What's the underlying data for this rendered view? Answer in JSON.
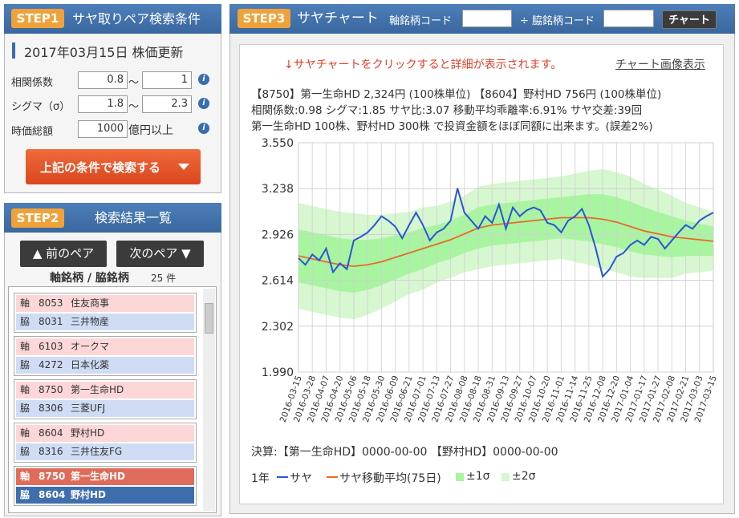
{
  "step1": {
    "badge": "STEP1",
    "title": "サヤ取りペア検索条件",
    "date": "2017年03月15日 株価更新",
    "fields": [
      {
        "label": "相関係数",
        "min": "0.8",
        "sep": "〜",
        "max": "1"
      },
      {
        "label": "シグマ（σ）",
        "min": "1.8",
        "sep": "〜",
        "max": "2.3"
      },
      {
        "label": "時価総額",
        "min": "1000",
        "unit": "億円以上"
      }
    ],
    "button": "上記の条件で検索する"
  },
  "step2": {
    "badge": "STEP2",
    "title": "検索結果一覧",
    "prev": "▲ 前のペア",
    "next": "次のペア ▼",
    "list_header": "軸銘柄 / 脇銘柄",
    "count": "25 件",
    "pairs": [
      {
        "axis_tag": "軸",
        "axis_code": "8053",
        "axis_name": "住友商事",
        "side_tag": "脇",
        "side_code": "8031",
        "side_name": "三井物産"
      },
      {
        "axis_tag": "軸",
        "axis_code": "6103",
        "axis_name": "オークマ",
        "side_tag": "脇",
        "side_code": "4272",
        "side_name": "日本化薬"
      },
      {
        "axis_tag": "軸",
        "axis_code": "8750",
        "axis_name": "第一生命HD",
        "side_tag": "脇",
        "side_code": "8306",
        "side_name": "三菱UFJ"
      },
      {
        "axis_tag": "軸",
        "axis_code": "8604",
        "axis_name": "野村HD",
        "side_tag": "脇",
        "side_code": "8316",
        "side_name": "三井住友FG"
      },
      {
        "axis_tag": "軸",
        "axis_code": "8750",
        "axis_name": "第一生命HD",
        "side_tag": "脇",
        "side_code": "8604",
        "side_name": "野村HD"
      }
    ]
  },
  "step3": {
    "badge": "STEP3",
    "title": "サヤチャート",
    "axis_code_label": "軸銘柄コード",
    "side_code_label": "÷ 脇銘柄コード",
    "button": "チャート",
    "notice": "↓サヤチャートをクリックすると詳細が表示されます。",
    "image_link": "チャート画像表示",
    "info": [
      "【8750】第一生命HD 2,324円 (100株単位) 【8604】野村HD 756円 (100株単位)",
      "相関係数:0.98 シグマ:1.85 サヤ比:3.07 移動平均乖離率:6.91% サヤ交差:39回",
      "第一生命HD 100株、野村HD 300株 で投資金額をほぼ同額に出来ます。(誤差2%)"
    ],
    "earnings": "決算:【第一生命HD】0000-00-00 【野村HD】0000-00-00",
    "period": "1年"
  },
  "chart_data": {
    "type": "line",
    "categories": [
      "2016-03-15",
      null,
      "2016-03-28",
      null,
      "2016-04-07",
      null,
      "2016-04-20",
      null,
      "2016-05-06",
      null,
      "2016-05-18",
      null,
      "2016-05-30",
      null,
      "2016-06-09",
      null,
      "2016-06-21",
      null,
      "2016-07-01",
      null,
      "2016-07-13",
      null,
      "2016-07-27",
      null,
      "2016-08-08",
      null,
      "2016-08-18",
      null,
      "2016-08-31",
      null,
      "2016-09-13",
      null,
      "2016-09-27",
      null,
      "2016-10-07",
      null,
      "2016-10-20",
      null,
      "2016-11-01",
      null,
      "2016-11-14",
      null,
      "2016-11-25",
      null,
      "2016-12-08",
      null,
      "2016-12-20",
      null,
      "2017-01-04",
      null,
      "2017-01-17",
      null,
      "2017-01-27",
      null,
      "2017-02-08",
      null,
      "2017-02-21",
      null,
      "2017-03-03",
      null,
      "2017-03-15"
    ],
    "series": [
      {
        "name": "サヤ",
        "color": "#2a55d8",
        "values": [
          2.765,
          2.72,
          2.79,
          2.75,
          2.83,
          2.67,
          2.73,
          2.69,
          2.885,
          2.91,
          2.94,
          2.99,
          3.05,
          3.02,
          2.98,
          2.9,
          2.99,
          3.075,
          2.99,
          2.885,
          2.94,
          2.965,
          3.02,
          3.24,
          3.075,
          3.02,
          2.965,
          3.05,
          3.005,
          3.13,
          2.965,
          3.11,
          3.05,
          3.09,
          3.11,
          3.09,
          3.005,
          2.99,
          2.94,
          3.02,
          3.05,
          3.1,
          2.99,
          2.83,
          2.64,
          2.69,
          2.775,
          2.8,
          2.855,
          2.885,
          2.855,
          2.91,
          2.895,
          2.83,
          2.885,
          2.94,
          2.99,
          2.965,
          3.02,
          3.05,
          3.075
        ]
      },
      {
        "name": "サヤ移動平均(75日)",
        "color": "#e8692a",
        "values": [
          2.78,
          2.77,
          2.76,
          2.75,
          2.74,
          2.73,
          2.72,
          2.715,
          2.71,
          2.715,
          2.72,
          2.73,
          2.74,
          2.755,
          2.77,
          2.785,
          2.8,
          2.815,
          2.83,
          2.845,
          2.86,
          2.875,
          2.89,
          2.91,
          2.93,
          2.95,
          2.97,
          2.98,
          2.99,
          2.995,
          3.0,
          3.005,
          3.01,
          3.015,
          3.02,
          3.025,
          3.03,
          3.035,
          3.04,
          3.04,
          3.04,
          3.04,
          3.04,
          3.035,
          3.03,
          3.02,
          3.01,
          2.995,
          2.98,
          2.965,
          2.95,
          2.94,
          2.93,
          2.92,
          2.91,
          2.905,
          2.9,
          2.895,
          2.89,
          2.885,
          2.88
        ]
      }
    ],
    "bands": [
      {
        "name": "±2σ",
        "color": "#d6f7cf",
        "upper": [
          3.14,
          3.12,
          3.1,
          3.08,
          3.07,
          3.06,
          3.06,
          3.07,
          3.08,
          3.11,
          3.12,
          3.15,
          3.19,
          3.25,
          3.27,
          3.28,
          3.29,
          3.3,
          3.31,
          3.32,
          3.34,
          3.36,
          3.37,
          3.35,
          3.32,
          3.27,
          3.23,
          3.19,
          3.14,
          3.11,
          3.08
        ],
        "lower": [
          2.42,
          2.4,
          2.38,
          2.36,
          2.35,
          2.38,
          2.42,
          2.47,
          2.52,
          2.55,
          2.6,
          2.63,
          2.67,
          2.69,
          2.71,
          2.72,
          2.73,
          2.74,
          2.75,
          2.76,
          2.74,
          2.72,
          2.69,
          2.67,
          2.64,
          2.63,
          2.63,
          2.63,
          2.66,
          2.67,
          2.68
        ]
      },
      {
        "name": "±1σ",
        "color": "#a8f5a0",
        "upper": [
          2.96,
          2.94,
          2.92,
          2.9,
          2.89,
          2.89,
          2.9,
          2.92,
          2.94,
          2.97,
          2.99,
          3.02,
          3.06,
          3.11,
          3.13,
          3.14,
          3.15,
          3.16,
          3.17,
          3.18,
          3.19,
          3.2,
          3.2,
          3.18,
          3.15,
          3.11,
          3.08,
          3.05,
          3.02,
          3.0,
          2.98
        ],
        "lower": [
          2.6,
          2.58,
          2.56,
          2.54,
          2.53,
          2.55,
          2.58,
          2.62,
          2.66,
          2.69,
          2.73,
          2.76,
          2.8,
          2.83,
          2.85,
          2.86,
          2.87,
          2.88,
          2.89,
          2.9,
          2.89,
          2.88,
          2.86,
          2.84,
          2.81,
          2.79,
          2.78,
          2.77,
          2.78,
          2.78,
          2.78
        ]
      }
    ],
    "ylim": [
      1.99,
      3.55
    ],
    "yticks": [
      {
        "value": 1.99,
        "label": "1.990"
      },
      2.302,
      2.614,
      2.926,
      3.238,
      {
        "value": 3.55,
        "label": "3.550"
      }
    ],
    "grid": true
  }
}
